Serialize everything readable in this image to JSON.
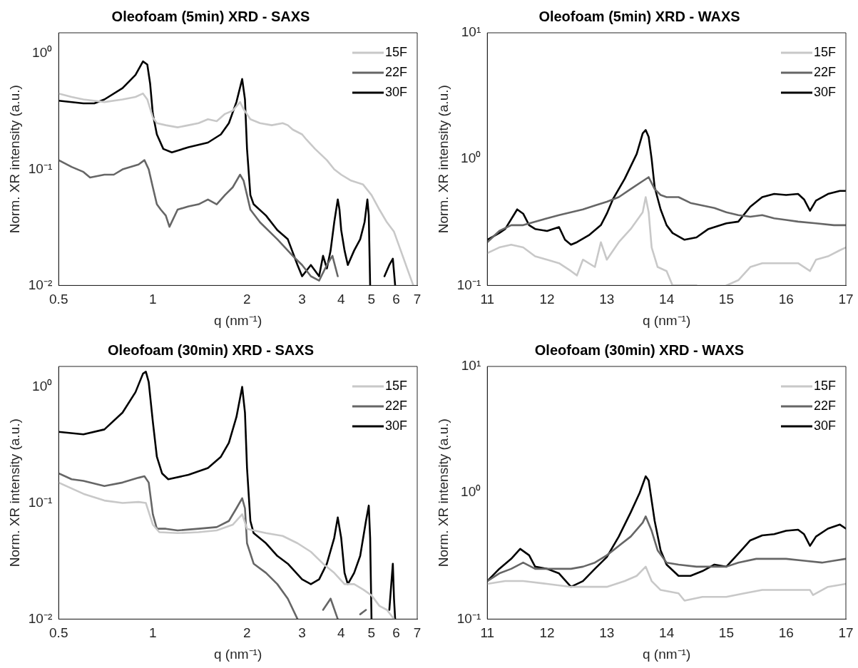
{
  "chart_data": [
    {
      "type": "line",
      "title": "Oleofoam (5min) XRD - SAXS",
      "xlabel": "q (nm⁻¹)",
      "ylabel": "Norm. XR intensity (a.u.)",
      "log": "xy",
      "grid": false,
      "legend": "top right",
      "marker": "none",
      "line_style": "solid",
      "xlim": [
        0.5,
        7
      ],
      "xticks": [
        0.5,
        1,
        2,
        3,
        4,
        5,
        6,
        7
      ],
      "ylim": [
        0.01,
        1.5
      ],
      "yticks": [
        {
          "value": 0.01,
          "label": "10⁻²"
        },
        {
          "value": 0.1,
          "label": "10⁻¹"
        },
        {
          "value": 1,
          "label": "10⁰"
        }
      ],
      "series": [
        {
          "name": "15F",
          "color": "#c8c8c8",
          "x": [
            0.5,
            0.55,
            0.6,
            0.7,
            0.8,
            0.88,
            0.93,
            0.96,
            1.0,
            1.03,
            1.1,
            1.2,
            1.3,
            1.4,
            1.5,
            1.6,
            1.7,
            1.8,
            1.9,
            1.95,
            2.05,
            2.2,
            2.4,
            2.6,
            2.7,
            2.8,
            3.0,
            3.1,
            3.3,
            3.6,
            3.8,
            4.0,
            4.3,
            4.7,
            5.0,
            5.3,
            5.6,
            5.9,
            6.2,
            6.5,
            6.8
          ],
          "values": [
            0.45,
            0.42,
            0.4,
            0.38,
            0.4,
            0.42,
            0.45,
            0.4,
            0.28,
            0.25,
            0.24,
            0.23,
            0.24,
            0.25,
            0.27,
            0.26,
            0.3,
            0.32,
            0.38,
            0.33,
            0.27,
            0.25,
            0.24,
            0.25,
            0.24,
            0.22,
            0.2,
            0.18,
            0.15,
            0.12,
            0.1,
            0.09,
            0.08,
            0.074,
            0.06,
            0.045,
            0.035,
            0.029,
            0.02,
            0.014,
            0.01
          ]
        },
        {
          "name": "22F",
          "color": "#666666",
          "x": [
            0.5,
            0.55,
            0.6,
            0.63,
            0.7,
            0.75,
            0.8,
            0.9,
            0.94,
            0.97,
            1.0,
            1.03,
            1.06,
            1.1,
            1.13,
            1.2,
            1.3,
            1.4,
            1.5,
            1.6,
            1.7,
            1.8,
            1.9,
            1.95,
            2.0,
            2.05,
            2.2,
            2.5,
            2.8,
            3.0,
            3.2,
            3.4,
            3.6,
            3.75,
            3.9
          ],
          "values": [
            0.12,
            0.105,
            0.095,
            0.085,
            0.09,
            0.09,
            0.1,
            0.11,
            0.12,
            0.1,
            0.07,
            0.05,
            0.045,
            0.04,
            0.032,
            0.045,
            0.048,
            0.05,
            0.055,
            0.05,
            0.06,
            0.07,
            0.09,
            0.08,
            0.06,
            0.045,
            0.035,
            0.025,
            0.018,
            0.015,
            0.012,
            0.011,
            0.015,
            0.018,
            0.012
          ]
        },
        {
          "name": "30F",
          "color": "#000000",
          "x": [
            0.5,
            0.6,
            0.65,
            0.7,
            0.8,
            0.88,
            0.93,
            0.96,
            0.98,
            1.0,
            1.03,
            1.08,
            1.15,
            1.3,
            1.5,
            1.65,
            1.75,
            1.85,
            1.93,
            1.97,
            2.0,
            2.05,
            2.1,
            2.3,
            2.5,
            2.7,
            2.9,
            3.0,
            3.2,
            3.4,
            3.5,
            3.6,
            3.7,
            3.8,
            3.9,
            3.95,
            4.0,
            4.1,
            4.2,
            4.4,
            4.6,
            4.75,
            4.85,
            4.9,
            4.95,
            5.0,
            5.5,
            5.7,
            5.85,
            5.95
          ],
          "values": [
            0.39,
            0.37,
            0.37,
            0.4,
            0.5,
            0.65,
            0.85,
            0.8,
            0.55,
            0.3,
            0.2,
            0.15,
            0.14,
            0.155,
            0.17,
            0.2,
            0.25,
            0.38,
            0.6,
            0.4,
            0.15,
            0.06,
            0.05,
            0.04,
            0.03,
            0.025,
            0.015,
            0.012,
            0.015,
            0.012,
            0.018,
            0.014,
            0.02,
            0.035,
            0.055,
            0.045,
            0.03,
            0.02,
            0.015,
            0.02,
            0.025,
            0.035,
            0.055,
            0.04,
            0.01,
            null,
            0.012,
            0.015,
            0.017,
            0.01
          ]
        }
      ]
    },
    {
      "type": "line",
      "title": "Oleofoam (5min) XRD - WAXS",
      "xlabel": "q (nm⁻¹)",
      "ylabel": "Norm. XR intensity (a.u.)",
      "log": "y",
      "grid": false,
      "legend": "top right",
      "marker": "none",
      "line_style": "solid",
      "xlim": [
        11,
        17
      ],
      "xticks": [
        11,
        12,
        13,
        14,
        15,
        16,
        17
      ],
      "ylim": [
        0.1,
        10
      ],
      "yticks": [
        {
          "value": 0.1,
          "label": "10⁻¹"
        },
        {
          "value": 1,
          "label": "10⁰"
        },
        {
          "value": 10,
          "label": "10¹"
        }
      ],
      "series": [
        {
          "name": "15F",
          "color": "#c8c8c8",
          "x": [
            11.0,
            11.2,
            11.4,
            11.6,
            11.8,
            12.0,
            12.2,
            12.4,
            12.5,
            12.6,
            12.8,
            12.9,
            13.0,
            13.2,
            13.4,
            13.6,
            13.65,
            13.7,
            13.75,
            13.85,
            14.0,
            14.1,
            14.2,
            14.5,
            14.8,
            15.0,
            15.2,
            15.4,
            15.6,
            15.8,
            16.0,
            16.2,
            16.4,
            16.5,
            16.7,
            16.9,
            17.0
          ],
          "values": [
            0.18,
            0.2,
            0.21,
            0.2,
            0.17,
            0.16,
            0.15,
            0.13,
            0.12,
            0.16,
            0.14,
            0.22,
            0.16,
            0.22,
            0.28,
            0.38,
            0.5,
            0.38,
            0.2,
            0.14,
            0.13,
            0.1,
            0.1,
            0.1,
            null,
            0.1,
            0.11,
            0.14,
            0.15,
            0.15,
            0.15,
            0.15,
            0.13,
            0.16,
            0.17,
            0.19,
            0.2
          ]
        },
        {
          "name": "22F",
          "color": "#666666",
          "x": [
            11.0,
            11.2,
            11.4,
            11.6,
            11.8,
            12.0,
            12.2,
            12.4,
            12.6,
            12.8,
            13.0,
            13.2,
            13.4,
            13.6,
            13.7,
            13.8,
            13.9,
            14.0,
            14.2,
            14.4,
            14.6,
            14.8,
            15.0,
            15.2,
            15.4,
            15.6,
            15.8,
            16.0,
            16.2,
            16.5,
            16.8,
            17.0
          ],
          "values": [
            0.22,
            0.27,
            0.3,
            0.3,
            0.32,
            0.34,
            0.36,
            0.38,
            0.4,
            0.43,
            0.46,
            0.5,
            0.58,
            0.67,
            0.72,
            0.58,
            0.52,
            0.5,
            0.5,
            0.45,
            0.43,
            0.41,
            0.38,
            0.36,
            0.35,
            0.36,
            0.34,
            0.33,
            0.32,
            0.31,
            0.3,
            0.3
          ]
        },
        {
          "name": "30F",
          "color": "#000000",
          "x": [
            11.0,
            11.2,
            11.3,
            11.5,
            11.6,
            11.7,
            11.8,
            12.0,
            12.2,
            12.3,
            12.4,
            12.5,
            12.7,
            12.9,
            13.0,
            13.1,
            13.3,
            13.5,
            13.6,
            13.65,
            13.7,
            13.75,
            13.8,
            13.9,
            14.0,
            14.1,
            14.3,
            14.5,
            14.7,
            15.0,
            15.2,
            15.4,
            15.6,
            15.8,
            16.0,
            16.2,
            16.3,
            16.4,
            16.5,
            16.7,
            16.9,
            17.0
          ],
          "values": [
            0.23,
            0.26,
            0.28,
            0.4,
            0.37,
            0.3,
            0.28,
            0.27,
            0.29,
            0.23,
            0.21,
            0.22,
            0.25,
            0.3,
            0.37,
            0.48,
            0.7,
            1.1,
            1.6,
            1.7,
            1.5,
            1.0,
            0.6,
            0.4,
            0.3,
            0.26,
            0.23,
            0.24,
            0.28,
            0.31,
            0.32,
            0.42,
            0.5,
            0.53,
            0.52,
            0.53,
            0.48,
            0.39,
            0.47,
            0.53,
            0.56,
            0.56
          ]
        }
      ]
    },
    {
      "type": "line",
      "title": "Oleofoam (30min) XRD - SAXS",
      "xlabel": "q (nm⁻¹)",
      "ylabel": "Norm. XR intensity (a.u.)",
      "log": "xy",
      "grid": false,
      "legend": "top right",
      "marker": "none",
      "line_style": "solid",
      "xlim": [
        0.5,
        7
      ],
      "xticks": [
        0.5,
        1,
        2,
        3,
        4,
        5,
        6,
        7
      ],
      "ylim": [
        0.01,
        1.5
      ],
      "yticks": [
        {
          "value": 0.01,
          "label": "10⁻²"
        },
        {
          "value": 0.1,
          "label": "10⁻¹"
        },
        {
          "value": 1,
          "label": "10⁰"
        }
      ],
      "series": [
        {
          "name": "15F",
          "color": "#c8c8c8",
          "x": [
            0.5,
            0.6,
            0.7,
            0.8,
            0.9,
            0.95,
            1.0,
            1.05,
            1.2,
            1.4,
            1.6,
            1.8,
            1.93,
            2.0,
            2.1,
            2.3,
            2.6,
            2.9,
            3.2,
            3.5,
            3.8,
            4.1,
            4.4,
            4.7,
            5.0,
            5.3,
            5.6,
            5.9
          ],
          "values": [
            0.15,
            0.12,
            0.105,
            0.1,
            0.102,
            0.1,
            0.065,
            0.056,
            0.055,
            0.056,
            0.058,
            0.065,
            0.08,
            0.06,
            0.058,
            0.055,
            0.052,
            0.045,
            0.038,
            0.03,
            0.025,
            0.02,
            0.02,
            0.018,
            0.016,
            0.013,
            0.012,
            0.01
          ]
        },
        {
          "name": "22F",
          "color": "#666666",
          "x": [
            0.5,
            0.55,
            0.6,
            0.7,
            0.8,
            0.9,
            0.94,
            0.97,
            1.0,
            1.03,
            1.1,
            1.2,
            1.4,
            1.6,
            1.75,
            1.85,
            1.93,
            1.97,
            2.0,
            2.1,
            2.3,
            2.5,
            2.7,
            2.9,
            3.0,
            3.5,
            3.7,
            3.9,
            4.0,
            4.6,
            4.8
          ],
          "values": [
            0.18,
            0.16,
            0.155,
            0.14,
            0.15,
            0.165,
            0.17,
            0.15,
            0.08,
            0.06,
            0.06,
            0.058,
            0.06,
            0.062,
            0.07,
            0.09,
            0.11,
            0.09,
            0.045,
            0.03,
            0.025,
            0.02,
            0.015,
            0.01,
            null,
            0.012,
            0.015,
            0.01,
            null,
            0.011,
            0.012
          ]
        },
        {
          "name": "30F",
          "color": "#000000",
          "x": [
            0.5,
            0.6,
            0.7,
            0.8,
            0.88,
            0.93,
            0.95,
            0.97,
            1.0,
            1.03,
            1.07,
            1.12,
            1.3,
            1.5,
            1.65,
            1.75,
            1.85,
            1.93,
            1.97,
            2.0,
            2.05,
            2.1,
            2.3,
            2.5,
            2.7,
            3.0,
            3.2,
            3.4,
            3.6,
            3.8,
            3.9,
            4.0,
            4.1,
            4.2,
            4.4,
            4.6,
            4.8,
            4.9,
            4.95,
            5.0,
            5.05,
            5.7,
            5.85,
            5.9,
            5.95
          ],
          "values": [
            0.41,
            0.39,
            0.43,
            0.6,
            0.9,
            1.3,
            1.35,
            1.1,
            0.5,
            0.25,
            0.18,
            0.16,
            0.175,
            0.2,
            0.25,
            0.33,
            0.55,
            1.0,
            0.6,
            0.2,
            0.07,
            0.055,
            0.045,
            0.035,
            0.03,
            0.022,
            0.02,
            0.022,
            0.03,
            0.05,
            0.075,
            0.05,
            0.025,
            0.02,
            0.025,
            0.035,
            0.07,
            0.095,
            0.05,
            0.01,
            null,
            0.012,
            0.03,
            0.015,
            0.01
          ]
        }
      ]
    },
    {
      "type": "line",
      "title": "Oleofoam (30min) XRD - WAXS",
      "xlabel": "q (nm⁻¹)",
      "ylabel": "Norm. XR intensity (a.u.)",
      "log": "y",
      "grid": false,
      "legend": "top right",
      "marker": "none",
      "line_style": "solid",
      "xlim": [
        11,
        17
      ],
      "xticks": [
        11,
        12,
        13,
        14,
        15,
        16,
        17
      ],
      "ylim": [
        0.1,
        10
      ],
      "yticks": [
        {
          "value": 0.1,
          "label": "10⁻¹"
        },
        {
          "value": 1,
          "label": "10⁰"
        },
        {
          "value": 10,
          "label": "10¹"
        }
      ],
      "series": [
        {
          "name": "15F",
          "color": "#c8c8c8",
          "x": [
            11.0,
            11.3,
            11.6,
            12.0,
            12.4,
            12.8,
            13.0,
            13.3,
            13.5,
            13.65,
            13.75,
            13.9,
            14.2,
            14.3,
            14.6,
            15.0,
            15.3,
            15.6,
            16.0,
            16.4,
            16.45,
            16.7,
            17.0
          ],
          "values": [
            0.19,
            0.2,
            0.2,
            0.19,
            0.18,
            0.18,
            0.18,
            0.2,
            0.22,
            0.26,
            0.2,
            0.17,
            0.16,
            0.14,
            0.15,
            0.15,
            0.16,
            0.17,
            0.17,
            0.17,
            0.155,
            0.18,
            0.19
          ]
        },
        {
          "name": "22F",
          "color": "#666666",
          "x": [
            11.0,
            11.2,
            11.4,
            11.6,
            11.8,
            12.0,
            12.2,
            12.4,
            12.6,
            12.8,
            13.0,
            13.2,
            13.4,
            13.6,
            13.65,
            13.75,
            13.85,
            14.0,
            14.2,
            14.5,
            14.8,
            15.0,
            15.2,
            15.5,
            15.8,
            16.0,
            16.3,
            16.6,
            16.8,
            17.0
          ],
          "values": [
            0.2,
            0.23,
            0.25,
            0.28,
            0.25,
            0.25,
            0.25,
            0.25,
            0.26,
            0.28,
            0.32,
            0.38,
            0.45,
            0.58,
            0.65,
            0.5,
            0.35,
            0.28,
            0.27,
            0.26,
            0.26,
            0.26,
            0.28,
            0.3,
            0.3,
            0.3,
            0.29,
            0.28,
            0.29,
            0.3
          ]
        },
        {
          "name": "30F",
          "color": "#000000",
          "x": [
            11.0,
            11.2,
            11.4,
            11.55,
            11.7,
            11.8,
            12.0,
            12.2,
            12.4,
            12.6,
            12.8,
            13.0,
            13.2,
            13.4,
            13.55,
            13.65,
            13.7,
            13.8,
            13.9,
            14.0,
            14.2,
            14.4,
            14.6,
            14.8,
            15.0,
            15.2,
            15.4,
            15.6,
            15.8,
            16.0,
            16.2,
            16.3,
            16.4,
            16.5,
            16.7,
            16.9,
            17.0
          ],
          "values": [
            0.2,
            0.25,
            0.3,
            0.36,
            0.32,
            0.26,
            0.25,
            0.23,
            0.18,
            0.2,
            0.25,
            0.31,
            0.45,
            0.7,
            1.0,
            1.35,
            1.25,
            0.6,
            0.35,
            0.27,
            0.22,
            0.22,
            0.24,
            0.27,
            0.26,
            0.33,
            0.42,
            0.46,
            0.47,
            0.5,
            0.51,
            0.47,
            0.38,
            0.45,
            0.52,
            0.56,
            0.52
          ]
        }
      ]
    }
  ]
}
